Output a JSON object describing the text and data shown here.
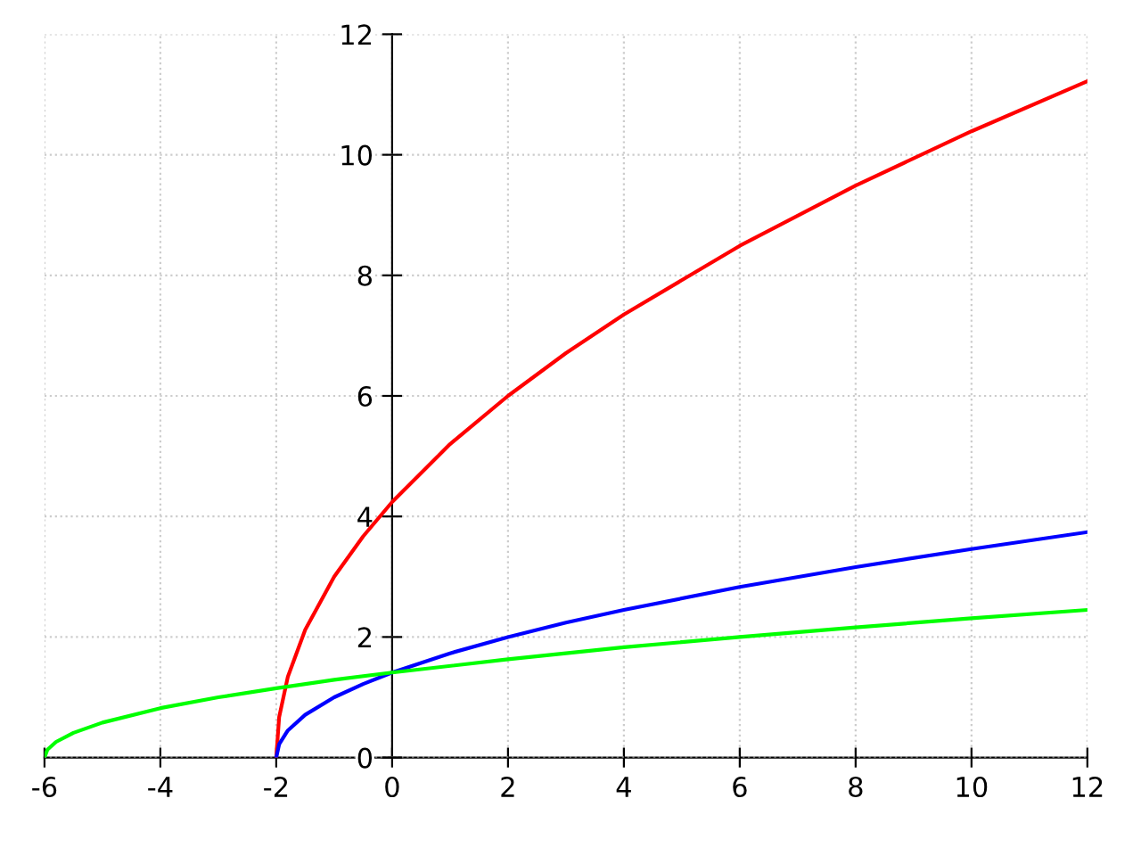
{
  "chart_data": {
    "type": "line",
    "xlim": [
      -6,
      12
    ],
    "ylim": [
      0,
      12
    ],
    "xticks": [
      -6,
      -4,
      -2,
      0,
      2,
      4,
      6,
      8,
      10,
      12
    ],
    "yticks": [
      0,
      2,
      4,
      6,
      8,
      10,
      12
    ],
    "grid": true,
    "marker": "none",
    "line_style": "solid",
    "series": [
      {
        "color": "#ff0000",
        "x": [
          -2,
          -1.95,
          -1.8,
          -1.5,
          -1,
          -0.5,
          0,
          1,
          2,
          3,
          4,
          6,
          8,
          10,
          12
        ],
        "values": [
          0,
          0.67,
          1.34,
          2.12,
          3,
          3.67,
          4.24,
          5.2,
          6,
          6.71,
          7.35,
          8.49,
          9.49,
          10.39,
          11.22
        ]
      },
      {
        "color": "#0000ff",
        "x": [
          -2,
          -1.95,
          -1.8,
          -1.5,
          -1,
          -0.5,
          0,
          1,
          2,
          3,
          4,
          6,
          8,
          10,
          12
        ],
        "values": [
          0,
          0.22,
          0.45,
          0.71,
          1,
          1.22,
          1.41,
          1.73,
          2,
          2.24,
          2.45,
          2.83,
          3.16,
          3.46,
          3.74
        ]
      },
      {
        "color": "#00ff00",
        "x": [
          -6,
          -5.95,
          -5.8,
          -5.5,
          -5,
          -4,
          -3,
          -2,
          -1,
          0,
          2,
          4,
          6,
          8,
          10,
          12
        ],
        "values": [
          0,
          0.13,
          0.26,
          0.41,
          0.58,
          0.82,
          1,
          1.15,
          1.29,
          1.41,
          1.63,
          1.83,
          2,
          2.16,
          2.31,
          2.45
        ]
      }
    ]
  }
}
